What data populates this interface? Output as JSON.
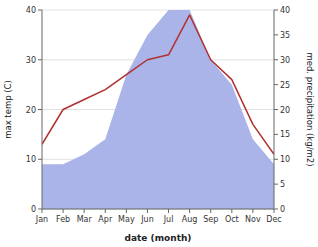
{
  "chart_data": {
    "type": "line",
    "categories": [
      "Jan",
      "Feb",
      "Mar",
      "Apr",
      "May",
      "Jun",
      "Jul",
      "Aug",
      "Sep",
      "Oct",
      "Nov",
      "Dec"
    ],
    "series": [
      {
        "type": "area",
        "color": "#aab4e8",
        "axis": "y2",
        "values": [
          9,
          9,
          11,
          14,
          27,
          35,
          40,
          40,
          30,
          25,
          14,
          9
        ]
      },
      {
        "type": "line",
        "color": "#b03030",
        "values": [
          13,
          20,
          22,
          24,
          27,
          30,
          31,
          39,
          30,
          26,
          17,
          11
        ]
      }
    ],
    "xlabel": "date (month)",
    "ylabel": "max temp (C)",
    "y2label": "med. precipitation (kg/m2)",
    "ylim": [
      0,
      40
    ],
    "yticks": [
      0,
      10,
      20,
      30,
      40
    ],
    "y2lim": [
      0,
      40
    ],
    "y2ticks": [
      0,
      5,
      10,
      15,
      20,
      25,
      30,
      35,
      40
    ],
    "grid": true
  }
}
